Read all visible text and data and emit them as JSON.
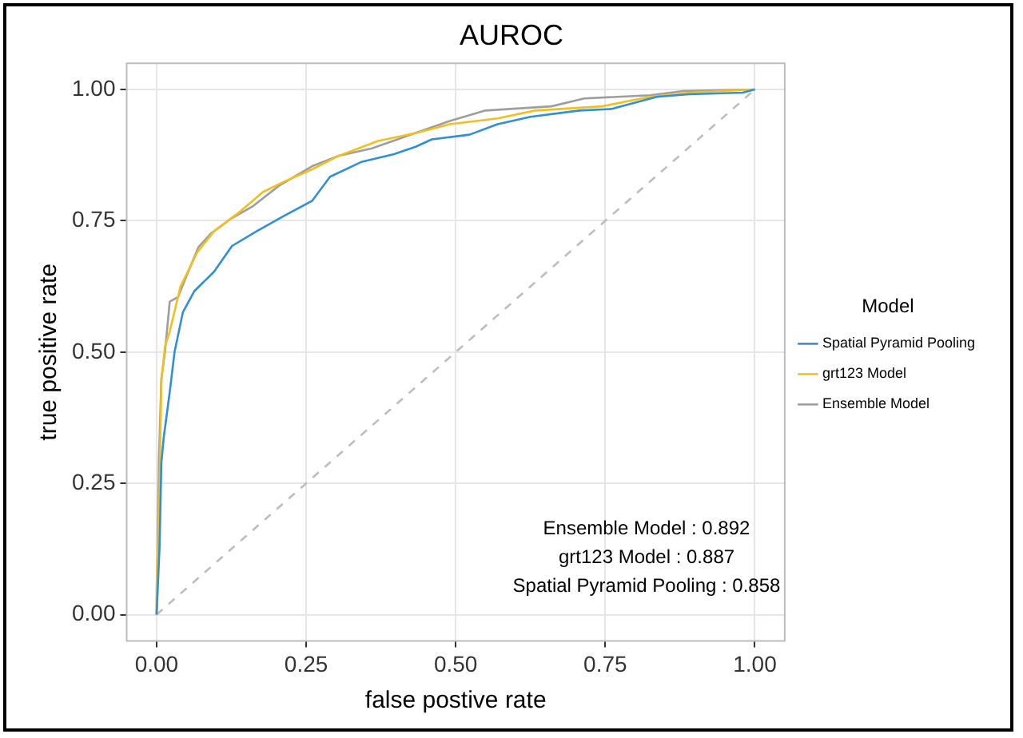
{
  "chart_data": {
    "type": "line",
    "title": "AUROC",
    "xlabel": "false postive rate",
    "ylabel": "true positive rate",
    "legend_title": "Model",
    "legend": "right",
    "grid": true,
    "marker": "none",
    "xlim": [
      -0.05,
      1.05
    ],
    "ylim": [
      -0.05,
      1.05
    ],
    "xticks": [
      {
        "value": 0,
        "label": "0.00"
      },
      {
        "value": 0.25,
        "label": "0.25"
      },
      {
        "value": 0.5,
        "label": "0.50"
      },
      {
        "value": 0.75,
        "label": "0.75"
      },
      {
        "value": 1,
        "label": "1.00"
      }
    ],
    "yticks": [
      {
        "value": 0,
        "label": "0.00"
      },
      {
        "value": 0.25,
        "label": "0.25"
      },
      {
        "value": 0.5,
        "label": "0.50"
      },
      {
        "value": 0.75,
        "label": "0.75"
      },
      {
        "value": 1,
        "label": "1.00"
      }
    ],
    "series": [
      {
        "name": "Spatial Pyramid Pooling",
        "color": "#2f8fd8",
        "x": [
          0,
          0.005,
          0.008,
          0.012,
          0.022,
          0.03,
          0.044,
          0.063,
          0.096,
          0.126,
          0.167,
          0.214,
          0.26,
          0.29,
          0.342,
          0.397,
          0.433,
          0.46,
          0.523,
          0.57,
          0.625,
          0.707,
          0.76,
          0.836,
          0.89,
          0.98,
          1
        ],
        "values": [
          0,
          0.13,
          0.29,
          0.338,
          0.424,
          0.5,
          0.576,
          0.616,
          0.653,
          0.702,
          0.73,
          0.76,
          0.788,
          0.834,
          0.862,
          0.877,
          0.891,
          0.905,
          0.914,
          0.934,
          0.948,
          0.96,
          0.963,
          0.986,
          0.991,
          0.994,
          1
        ]
      },
      {
        "name": "grt123 Model",
        "color": "#f2c01e",
        "x": [
          0,
          0,
          0.004,
          0.008,
          0.014,
          0.022,
          0.04,
          0.068,
          0.096,
          0.14,
          0.178,
          0.214,
          0.26,
          0.305,
          0.37,
          0.433,
          0.49,
          0.57,
          0.633,
          0.745,
          0.825,
          0.89,
          1
        ],
        "values": [
          0,
          0.05,
          0.186,
          0.444,
          0.51,
          0.539,
          0.625,
          0.69,
          0.73,
          0.768,
          0.805,
          0.825,
          0.848,
          0.874,
          0.902,
          0.917,
          0.934,
          0.945,
          0.96,
          0.968,
          0.986,
          0.994,
          1
        ]
      },
      {
        "name": "Ensemble Model",
        "color": "#9e9e9e",
        "x": [
          0,
          0.004,
          0.008,
          0.014,
          0.022,
          0.036,
          0.05,
          0.07,
          0.09,
          0.123,
          0.16,
          0.205,
          0.26,
          0.305,
          0.36,
          0.415,
          0.49,
          0.55,
          0.66,
          0.715,
          0.825,
          0.88,
          1
        ],
        "values": [
          0,
          0.3,
          0.45,
          0.5,
          0.596,
          0.605,
          0.645,
          0.7,
          0.725,
          0.753,
          0.777,
          0.817,
          0.854,
          0.874,
          0.888,
          0.91,
          0.94,
          0.96,
          0.968,
          0.983,
          0.989,
          0.997,
          1
        ]
      },
      {
        "color": "#bdbdbd",
        "line_style": "dashed",
        "x": [
          0,
          1
        ],
        "values": [
          0,
          1
        ]
      }
    ],
    "annotations": [
      "Ensemble Model : 0.892",
      "grt123 Model : 0.887",
      "Spatial Pyramid Pooling : 0.858"
    ]
  }
}
